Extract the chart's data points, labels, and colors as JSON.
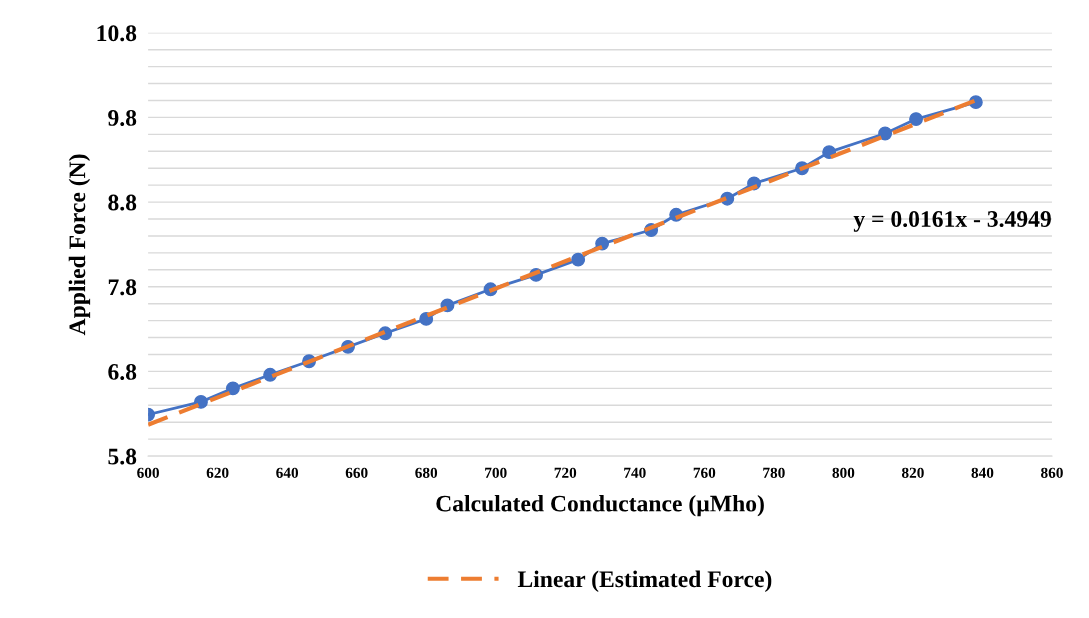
{
  "chart_data": {
    "type": "line",
    "xlabel": "Calculated Conductance (µMho)",
    "ylabel": "Applied Force (N)",
    "annotations": [
      "y = 0.0161x - 3.4949"
    ],
    "xlim": [
      600,
      860
    ],
    "xticks": [
      600,
      620,
      640,
      660,
      680,
      700,
      720,
      740,
      760,
      780,
      800,
      820,
      840,
      860
    ],
    "ylim": [
      5.8,
      10.8
    ],
    "yticks": [
      5.8,
      {
        "value": 6.0,
        "label": null
      },
      {
        "value": 6.2,
        "label": null
      },
      {
        "value": 6.4,
        "label": null
      },
      {
        "value": 6.6,
        "label": null
      },
      6.8,
      {
        "value": 7.0,
        "label": null
      },
      {
        "value": 7.2,
        "label": null
      },
      {
        "value": 7.4,
        "label": null
      },
      {
        "value": 7.6,
        "label": null
      },
      7.8,
      {
        "value": 8.0,
        "label": null
      },
      {
        "value": 8.2,
        "label": null
      },
      {
        "value": 8.4,
        "label": null
      },
      {
        "value": 8.6,
        "label": null
      },
      8.8,
      {
        "value": 9.0,
        "label": null
      },
      {
        "value": 9.2,
        "label": null
      },
      {
        "value": 9.4,
        "label": null
      },
      {
        "value": 9.6,
        "label": null
      },
      9.8,
      {
        "value": 10.0,
        "label": null
      },
      {
        "value": 10.2,
        "label": null
      },
      {
        "value": 10.4,
        "label": null
      },
      {
        "value": 10.6,
        "label": null
      },
      10.8
    ],
    "grid": "y",
    "legend": "bottom",
    "series": [
      {
        "marker": "circle",
        "line_style": "solid",
        "color": "#4472c4",
        "x": [
          600,
          615.2,
          624.4,
          635.1,
          646.3,
          657.5,
          668.2,
          680,
          686.1,
          698.5,
          711.6,
          723.7,
          730.6,
          744.7,
          751.9,
          766.6,
          774.3,
          788.1,
          795.9,
          812,
          820.9,
          838.1
        ],
        "values": [
          6.29,
          6.44,
          6.6,
          6.76,
          6.92,
          7.09,
          7.25,
          7.42,
          7.58,
          7.77,
          7.94,
          8.12,
          8.31,
          8.47,
          8.65,
          8.84,
          9.02,
          9.2,
          9.39,
          9.61,
          9.78,
          9.98
        ]
      },
      {
        "name": "Linear (Estimated Force)",
        "marker": "none",
        "line_style": "dashed",
        "color": "#ed7d31",
        "x": [
          600,
          838
        ],
        "values": [
          6.17,
          10.0
        ]
      }
    ]
  }
}
